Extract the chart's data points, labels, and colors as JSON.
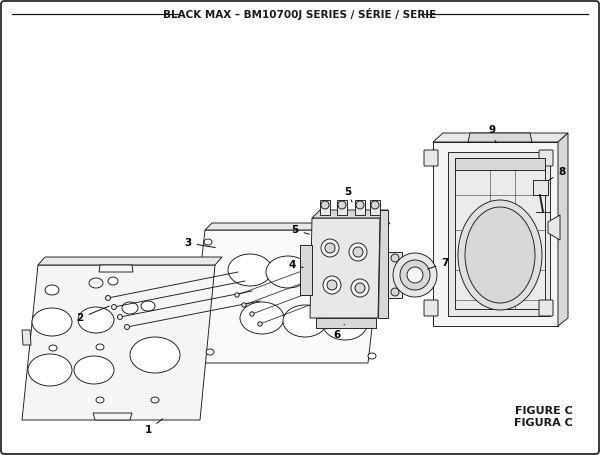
{
  "title": "BLACK MAX – BM10700J SERIES / SÉRIE / SERIE",
  "title_fontsize": 7.5,
  "figure_c_label": "FIGURE C",
  "figura_c_label": "FIGURA C",
  "bg": "#ffffff",
  "lc": "#1a1a1a",
  "fc_light": "#f5f5f5",
  "fc_mid": "#e8e8e8",
  "fc_dark": "#d8d8d8",
  "fc_white": "#ffffff",
  "fig_width": 6.0,
  "fig_height": 4.55,
  "dpi": 100
}
